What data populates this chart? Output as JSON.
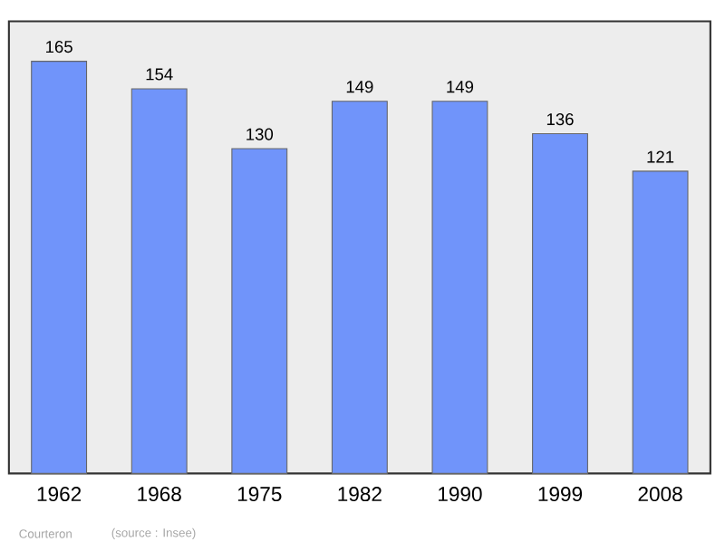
{
  "chart_data": {
    "type": "bar",
    "categories": [
      "1962",
      "1968",
      "1975",
      "1982",
      "1990",
      "1999",
      "2008"
    ],
    "values": [
      165,
      154,
      130,
      149,
      149,
      136,
      121
    ],
    "color": "#7094fa",
    "ylim": [
      0,
      181
    ],
    "data_labels": true,
    "annotations": [
      "Courteron",
      "(source : Insee)"
    ]
  }
}
